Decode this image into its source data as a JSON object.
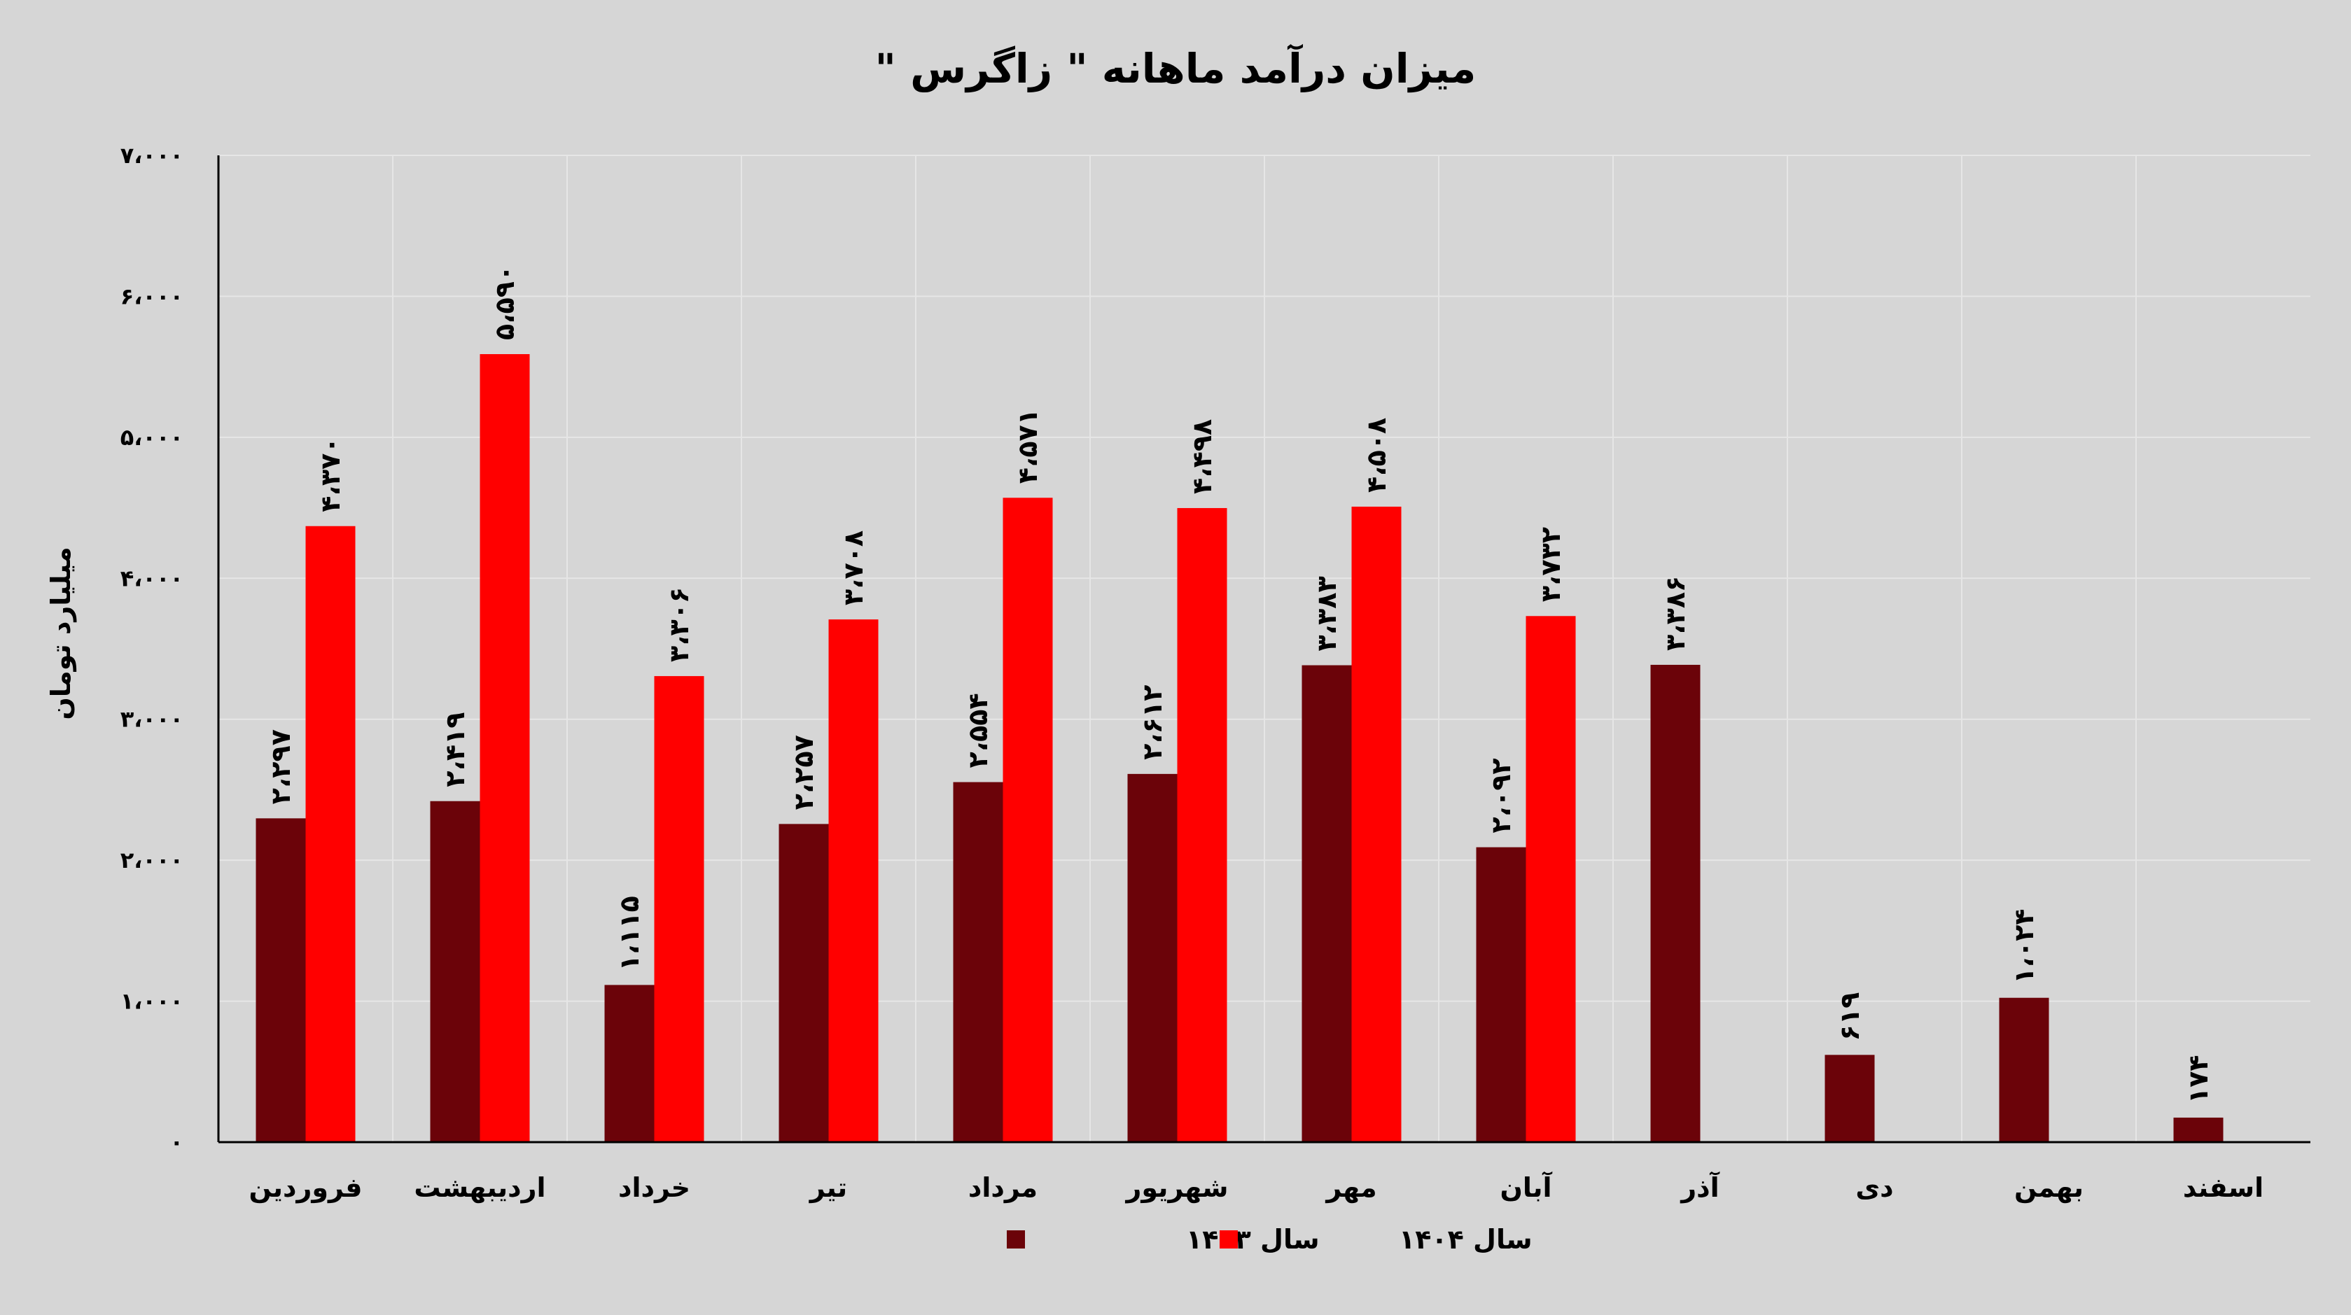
{
  "chart_data": {
    "type": "bar",
    "title": "میزان درآمد ماهانه \" زاگرس \"",
    "ylabel": "میلیارد تومان",
    "xlabel": "",
    "ylim": [
      0,
      7000
    ],
    "yticks": [
      0,
      1000,
      2000,
      3000,
      4000,
      5000,
      6000,
      7000
    ],
    "ytick_labels": [
      "۰",
      "۱،۰۰۰",
      "۲،۰۰۰",
      "۳،۰۰۰",
      "۴،۰۰۰",
      "۵،۰۰۰",
      "۶،۰۰۰",
      "۷،۰۰۰"
    ],
    "grid": true,
    "legend_position": "bottom",
    "categories": [
      "فروردین",
      "اردیبهشت",
      "خرداد",
      "تیر",
      "مرداد",
      "شهریور",
      "مهر",
      "آبان",
      "آذر",
      "دی",
      "بهمن",
      "اسفند"
    ],
    "series": [
      {
        "name": "سال ۱۴۰۳",
        "color": "#6b0309",
        "values": [
          2297,
          2419,
          1115,
          2257,
          2554,
          2612,
          3383,
          2092,
          3386,
          619,
          1024,
          174
        ],
        "labels": [
          "۲،۲۹۷",
          "۲،۴۱۹",
          "۱،۱۱۵",
          "۲،۲۵۷",
          "۲،۵۵۴",
          "۲،۶۱۲",
          "۳،۳۸۳",
          "۲،۰۹۲",
          "۳،۳۸۶",
          "۶۱۹",
          "۱،۰۲۴",
          "۱۷۴"
        ]
      },
      {
        "name": "سال ۱۴۰۴",
        "color": "#ff0000",
        "values": [
          4370,
          5590,
          3306,
          3708,
          4571,
          4498,
          4508,
          3732,
          null,
          null,
          null,
          null
        ],
        "labels": [
          "۴،۳۷۰",
          "۵،۵۹۰",
          "۳،۳۰۶",
          "۳،۷۰۸",
          "۴،۵۷۱",
          "۴،۴۹۸",
          "۴،۵۰۸",
          "۳،۷۳۲",
          null,
          null,
          null,
          null
        ]
      }
    ]
  }
}
